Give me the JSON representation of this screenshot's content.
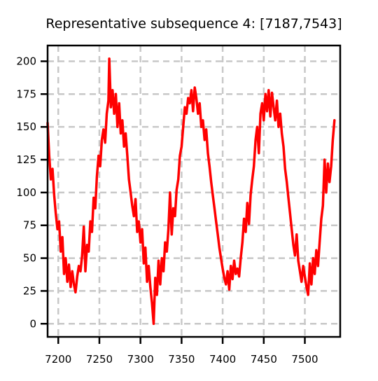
{
  "chart_data": {
    "type": "line",
    "title": "Representative subsequence 4: [7187,7543]",
    "xlabel": "",
    "ylabel": "",
    "xlim": [
      7187,
      7543
    ],
    "ylim": [
      -10,
      212
    ],
    "x_ticks": [
      7200,
      7250,
      7300,
      7350,
      7400,
      7450,
      7500
    ],
    "y_ticks": [
      0,
      25,
      50,
      75,
      100,
      125,
      150,
      175,
      200
    ],
    "grid": true,
    "legend": "none",
    "series": [
      {
        "color": "#ff0000",
        "points": [
          [
            7187,
            153
          ],
          [
            7189,
            128
          ],
          [
            7191,
            110
          ],
          [
            7193,
            118
          ],
          [
            7195,
            98
          ],
          [
            7197,
            84
          ],
          [
            7199,
            72
          ],
          [
            7201,
            78
          ],
          [
            7203,
            55
          ],
          [
            7205,
            66
          ],
          [
            7207,
            38
          ],
          [
            7209,
            50
          ],
          [
            7211,
            32
          ],
          [
            7213,
            45
          ],
          [
            7215,
            28
          ],
          [
            7217,
            40
          ],
          [
            7219,
            30
          ],
          [
            7221,
            24
          ],
          [
            7223,
            36
          ],
          [
            7225,
            44
          ],
          [
            7227,
            40
          ],
          [
            7229,
            52
          ],
          [
            7231,
            74
          ],
          [
            7233,
            40
          ],
          [
            7235,
            60
          ],
          [
            7237,
            55
          ],
          [
            7239,
            78
          ],
          [
            7241,
            70
          ],
          [
            7243,
            96
          ],
          [
            7245,
            88
          ],
          [
            7247,
            112
          ],
          [
            7249,
            128
          ],
          [
            7251,
            120
          ],
          [
            7253,
            140
          ],
          [
            7255,
            148
          ],
          [
            7257,
            138
          ],
          [
            7259,
            160
          ],
          [
            7261,
            170
          ],
          [
            7262,
            202
          ],
          [
            7264,
            165
          ],
          [
            7266,
            178
          ],
          [
            7268,
            160
          ],
          [
            7270,
            175
          ],
          [
            7272,
            150
          ],
          [
            7274,
            168
          ],
          [
            7276,
            145
          ],
          [
            7278,
            155
          ],
          [
            7280,
            135
          ],
          [
            7282,
            145
          ],
          [
            7284,
            128
          ],
          [
            7286,
            110
          ],
          [
            7288,
            100
          ],
          [
            7290,
            90
          ],
          [
            7292,
            82
          ],
          [
            7294,
            95
          ],
          [
            7296,
            70
          ],
          [
            7298,
            78
          ],
          [
            7300,
            62
          ],
          [
            7302,
            72
          ],
          [
            7304,
            46
          ],
          [
            7306,
            58
          ],
          [
            7308,
            32
          ],
          [
            7310,
            44
          ],
          [
            7312,
            28
          ],
          [
            7314,
            16
          ],
          [
            7316,
            0
          ],
          [
            7318,
            35
          ],
          [
            7320,
            22
          ],
          [
            7322,
            48
          ],
          [
            7324,
            30
          ],
          [
            7326,
            50
          ],
          [
            7328,
            40
          ],
          [
            7330,
            62
          ],
          [
            7332,
            55
          ],
          [
            7334,
            72
          ],
          [
            7336,
            100
          ],
          [
            7338,
            68
          ],
          [
            7340,
            88
          ],
          [
            7342,
            82
          ],
          [
            7344,
            102
          ],
          [
            7346,
            110
          ],
          [
            7348,
            128
          ],
          [
            7350,
            135
          ],
          [
            7352,
            150
          ],
          [
            7354,
            165
          ],
          [
            7356,
            160
          ],
          [
            7358,
            172
          ],
          [
            7360,
            168
          ],
          [
            7362,
            178
          ],
          [
            7364,
            162
          ],
          [
            7366,
            180
          ],
          [
            7368,
            172
          ],
          [
            7370,
            160
          ],
          [
            7372,
            168
          ],
          [
            7374,
            150
          ],
          [
            7376,
            155
          ],
          [
            7378,
            140
          ],
          [
            7380,
            148
          ],
          [
            7382,
            130
          ],
          [
            7384,
            120
          ],
          [
            7386,
            108
          ],
          [
            7388,
            98
          ],
          [
            7390,
            88
          ],
          [
            7392,
            78
          ],
          [
            7394,
            68
          ],
          [
            7396,
            58
          ],
          [
            7398,
            50
          ],
          [
            7400,
            42
          ],
          [
            7402,
            35
          ],
          [
            7404,
            30
          ],
          [
            7406,
            40
          ],
          [
            7408,
            26
          ],
          [
            7410,
            44
          ],
          [
            7412,
            34
          ],
          [
            7414,
            48
          ],
          [
            7416,
            38
          ],
          [
            7418,
            42
          ],
          [
            7420,
            36
          ],
          [
            7422,
            50
          ],
          [
            7424,
            62
          ],
          [
            7426,
            80
          ],
          [
            7428,
            70
          ],
          [
            7430,
            92
          ],
          [
            7432,
            76
          ],
          [
            7434,
            98
          ],
          [
            7436,
            110
          ],
          [
            7438,
            120
          ],
          [
            7440,
            140
          ],
          [
            7442,
            150
          ],
          [
            7444,
            130
          ],
          [
            7446,
            160
          ],
          [
            7448,
            168
          ],
          [
            7450,
            155
          ],
          [
            7452,
            175
          ],
          [
            7454,
            162
          ],
          [
            7456,
            178
          ],
          [
            7458,
            158
          ],
          [
            7460,
            176
          ],
          [
            7462,
            165
          ],
          [
            7464,
            155
          ],
          [
            7466,
            170
          ],
          [
            7468,
            150
          ],
          [
            7470,
            160
          ],
          [
            7472,
            145
          ],
          [
            7474,
            135
          ],
          [
            7476,
            118
          ],
          [
            7478,
            108
          ],
          [
            7480,
            96
          ],
          [
            7482,
            84
          ],
          [
            7484,
            72
          ],
          [
            7486,
            60
          ],
          [
            7488,
            52
          ],
          [
            7490,
            68
          ],
          [
            7492,
            48
          ],
          [
            7494,
            40
          ],
          [
            7496,
            32
          ],
          [
            7498,
            44
          ],
          [
            7500,
            36
          ],
          [
            7502,
            28
          ],
          [
            7504,
            22
          ],
          [
            7506,
            46
          ],
          [
            7508,
            30
          ],
          [
            7510,
            50
          ],
          [
            7512,
            38
          ],
          [
            7514,
            56
          ],
          [
            7516,
            44
          ],
          [
            7518,
            62
          ],
          [
            7520,
            80
          ],
          [
            7522,
            90
          ],
          [
            7524,
            125
          ],
          [
            7526,
            100
          ],
          [
            7528,
            122
          ],
          [
            7530,
            108
          ],
          [
            7532,
            120
          ],
          [
            7534,
            140
          ],
          [
            7536,
            155
          ]
        ]
      }
    ]
  }
}
